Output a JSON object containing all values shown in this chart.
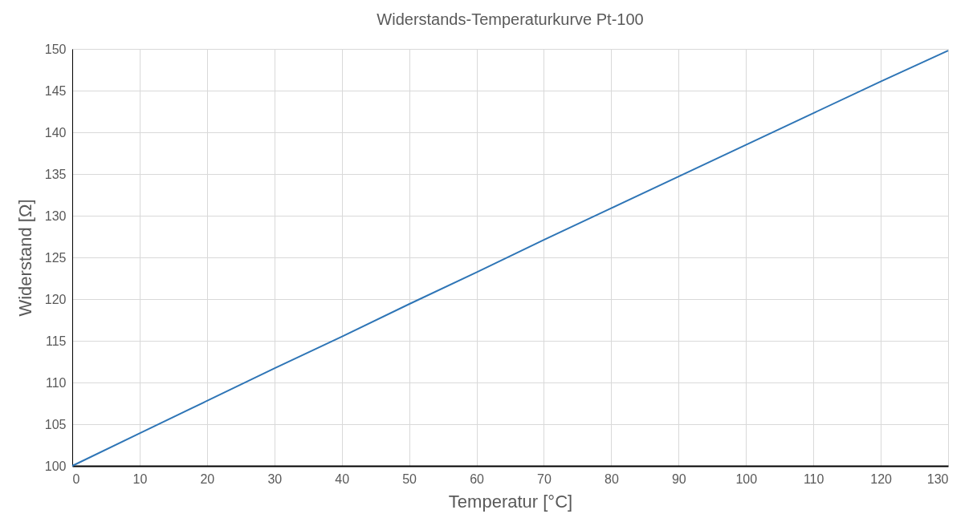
{
  "chart_data": {
    "type": "line",
    "title": "Widerstands-Temperaturkurve Pt-100",
    "xlabel": "Temperatur [°C]",
    "ylabel": "Widerstand [Ω]",
    "x": [
      0,
      10,
      20,
      30,
      40,
      50,
      60,
      70,
      80,
      90,
      100,
      110,
      120,
      130
    ],
    "series": [
      {
        "color": "#2e75b6",
        "values": [
          100.0,
          103.9,
          107.8,
          111.7,
          115.5,
          119.4,
          123.2,
          127.1,
          130.9,
          134.7,
          138.5,
          142.3,
          146.1,
          149.8
        ]
      }
    ],
    "xlim": [
      0,
      130
    ],
    "xticks": [
      0,
      10,
      20,
      30,
      40,
      50,
      60,
      70,
      80,
      90,
      100,
      110,
      120,
      130
    ],
    "ylim": [
      100,
      150
    ],
    "yticks": [
      100,
      105,
      110,
      115,
      120,
      125,
      130,
      135,
      140,
      145,
      150
    ],
    "grid": true,
    "legend": false,
    "marker": "none",
    "line_style": "solid"
  }
}
